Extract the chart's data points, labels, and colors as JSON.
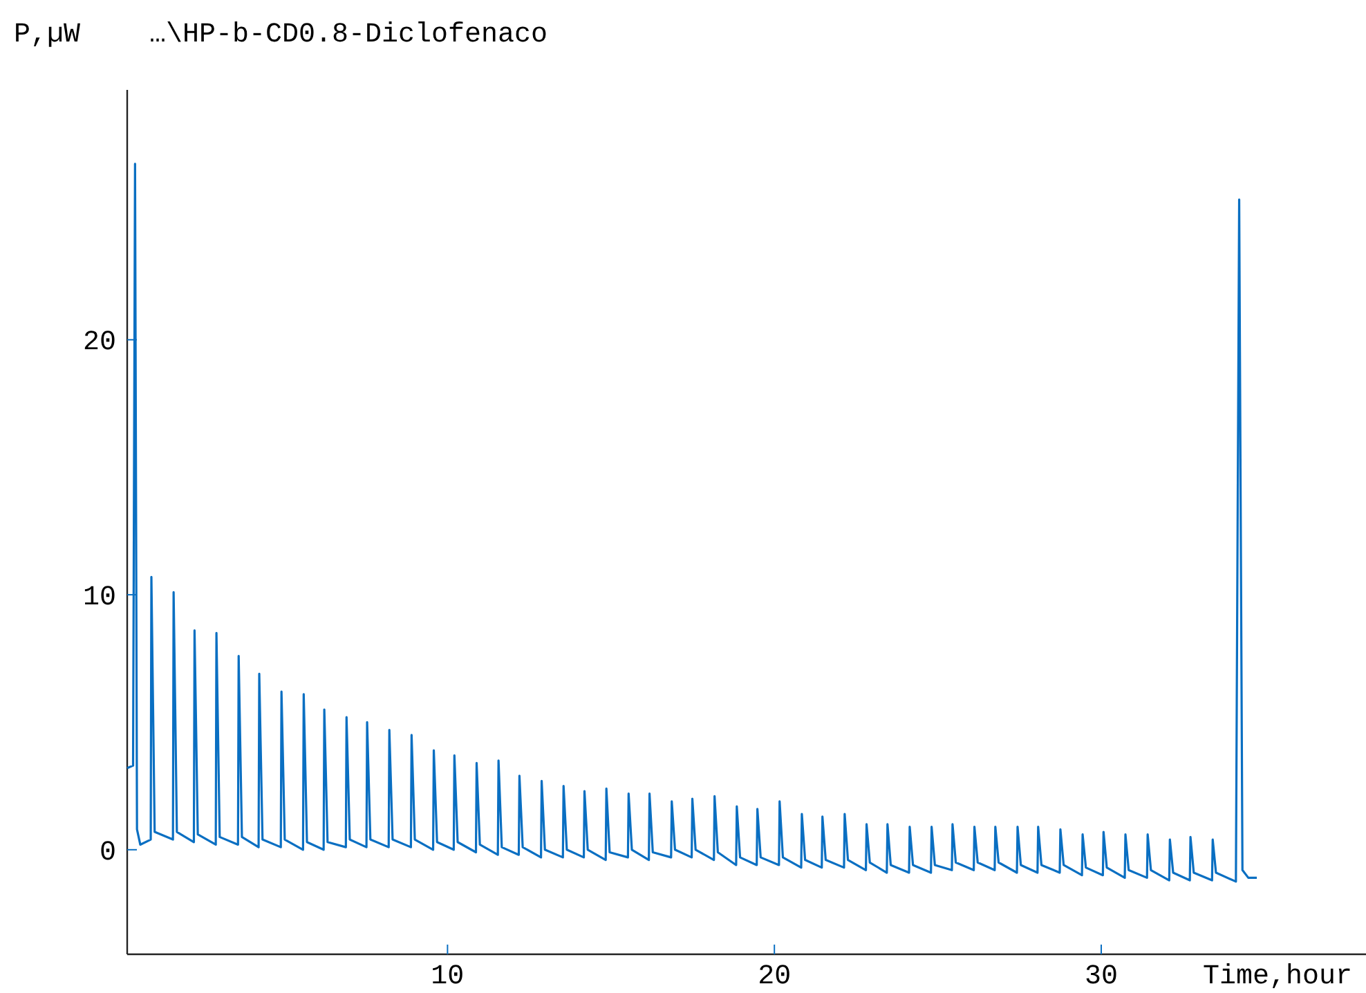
{
  "chart_data": {
    "type": "line",
    "title": "…\\HP-b-CD0.8-Diclofenaco",
    "ylabel": "P,µW",
    "xlabel": "Time,hour",
    "xlim": [
      0.2,
      38.1
    ],
    "ylim": [
      -4.1,
      29.8
    ],
    "xticks": [
      10,
      20,
      30
    ],
    "yticks": [
      0,
      10,
      20
    ],
    "series": [
      {
        "color": "#0a6fc2",
        "x": [
          0.2,
          0.38,
          0.44,
          0.5,
          0.6,
          0.92,
          0.94,
          1.04,
          1.6,
          1.62,
          1.72,
          2.24,
          2.26,
          2.36,
          2.91,
          2.93,
          3.03,
          3.59,
          3.61,
          3.71,
          4.22,
          4.24,
          4.34,
          4.9,
          4.92,
          5.02,
          5.58,
          5.6,
          5.7,
          6.21,
          6.23,
          6.33,
          6.89,
          6.91,
          7.01,
          7.52,
          7.54,
          7.64,
          8.2,
          8.22,
          8.32,
          8.88,
          8.9,
          9.0,
          9.56,
          9.58,
          9.68,
          10.19,
          10.21,
          10.31,
          10.87,
          10.89,
          10.99,
          11.54,
          11.56,
          11.66,
          12.18,
          12.2,
          12.3,
          12.86,
          12.88,
          12.98,
          13.53,
          13.55,
          13.65,
          14.17,
          14.19,
          14.29,
          14.84,
          14.86,
          14.96,
          15.52,
          15.54,
          15.64,
          16.16,
          16.18,
          16.28,
          16.84,
          16.86,
          16.96,
          17.47,
          17.49,
          17.59,
          18.15,
          18.17,
          18.27,
          18.83,
          18.85,
          18.95,
          19.46,
          19.48,
          19.58,
          20.14,
          20.16,
          20.26,
          20.82,
          20.84,
          20.94,
          21.45,
          21.47,
          21.57,
          22.13,
          22.15,
          22.25,
          22.8,
          22.82,
          22.92,
          23.44,
          23.46,
          23.56,
          24.12,
          24.14,
          24.24,
          24.79,
          24.81,
          24.91,
          25.43,
          25.45,
          25.55,
          26.1,
          26.12,
          26.22,
          26.74,
          26.76,
          26.86,
          27.42,
          27.44,
          27.54,
          28.05,
          28.07,
          28.17,
          28.73,
          28.75,
          28.85,
          29.41,
          29.43,
          29.53,
          30.05,
          30.07,
          30.17,
          30.72,
          30.74,
          30.84,
          31.4,
          31.42,
          31.52,
          32.08,
          32.1,
          32.2,
          32.71,
          32.73,
          32.83,
          33.39,
          33.41,
          33.51,
          34.12,
          34.22,
          34.32,
          34.5,
          34.76
        ],
        "values": [
          3.2,
          3.3,
          26.9,
          0.8,
          0.2,
          0.4,
          10.7,
          0.7,
          0.4,
          10.1,
          0.7,
          0.3,
          8.6,
          0.6,
          0.2,
          8.5,
          0.5,
          0.2,
          7.6,
          0.5,
          0.1,
          6.9,
          0.4,
          0.1,
          6.2,
          0.4,
          0.0,
          6.1,
          0.3,
          0.0,
          5.5,
          0.3,
          0.1,
          5.2,
          0.4,
          0.1,
          5.0,
          0.4,
          0.1,
          4.7,
          0.4,
          0.1,
          4.5,
          0.4,
          0.0,
          3.9,
          0.3,
          0.0,
          3.7,
          0.3,
          -0.1,
          3.4,
          0.2,
          -0.2,
          3.5,
          0.1,
          -0.2,
          2.9,
          0.1,
          -0.3,
          2.7,
          0.0,
          -0.3,
          2.5,
          0.0,
          -0.3,
          2.3,
          0.0,
          -0.4,
          2.4,
          -0.1,
          -0.3,
          2.2,
          0.0,
          -0.4,
          2.2,
          -0.1,
          -0.3,
          1.9,
          0.0,
          -0.3,
          2.0,
          0.0,
          -0.4,
          2.1,
          -0.1,
          -0.6,
          1.7,
          -0.3,
          -0.6,
          1.6,
          -0.3,
          -0.6,
          1.9,
          -0.3,
          -0.7,
          1.4,
          -0.4,
          -0.7,
          1.3,
          -0.4,
          -0.7,
          1.4,
          -0.4,
          -0.8,
          1.0,
          -0.5,
          -0.9,
          1.0,
          -0.6,
          -0.9,
          0.9,
          -0.6,
          -0.9,
          0.9,
          -0.6,
          -0.8,
          1.0,
          -0.5,
          -0.8,
          0.9,
          -0.5,
          -0.8,
          0.9,
          -0.5,
          -0.9,
          0.9,
          -0.6,
          -0.9,
          0.9,
          -0.6,
          -0.9,
          0.8,
          -0.6,
          -1.0,
          0.6,
          -0.7,
          -1.0,
          0.7,
          -0.7,
          -1.1,
          0.6,
          -0.8,
          -1.1,
          0.6,
          -0.8,
          -1.2,
          0.4,
          -0.9,
          -1.2,
          0.5,
          -0.9,
          -1.2,
          0.4,
          -0.9,
          -1.25,
          25.5,
          -0.8,
          -1.1,
          -1.1
        ]
      }
    ]
  }
}
